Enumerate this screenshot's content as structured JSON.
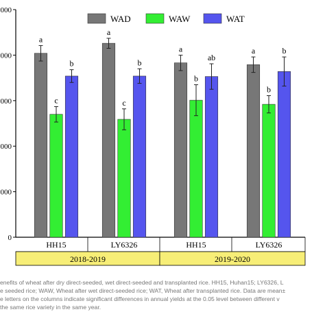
{
  "chart_data": {
    "type": "bar",
    "ylim": [
      0,
      5000
    ],
    "yticks": [
      0,
      1000,
      2000,
      3000,
      4000,
      5000
    ],
    "ytick_labels": [
      "0",
      "000",
      "000",
      "000",
      "000",
      "000"
    ],
    "categories": [
      "HH15",
      "LY6326",
      "HH15",
      "LY6326"
    ],
    "groups": [
      {
        "label": "2018-2019",
        "categories": [
          0,
          1
        ]
      },
      {
        "label": "2019-2020",
        "categories": [
          2,
          3
        ]
      }
    ],
    "series": [
      {
        "name": "WAD",
        "color": "#777777",
        "values": [
          4040,
          4260,
          3830,
          3790
        ],
        "errors": [
          170,
          110,
          170,
          170
        ],
        "letters": [
          "a",
          "a",
          "a",
          "a"
        ]
      },
      {
        "name": "WAW",
        "color": "#33ee33",
        "values": [
          2700,
          2590,
          3010,
          2920
        ],
        "errors": [
          170,
          230,
          340,
          190
        ],
        "letters": [
          "c",
          "c",
          "b",
          "b"
        ]
      },
      {
        "name": "WAT",
        "color": "#5555ee",
        "values": [
          3540,
          3540,
          3530,
          3640
        ],
        "errors": [
          140,
          160,
          280,
          320
        ],
        "letters": [
          "b",
          "b",
          "ab",
          "b"
        ]
      }
    ],
    "legend_position": "top",
    "grid": false,
    "group_band_color": "#f7ee77"
  },
  "caption": {
    "line1": "enefits of wheat after dry direct-seeded, wet direct-seeded and transplanted rice. HH15, Huhan15; LY6326, L",
    "line2": "e seeded rice; WAW, Wheat after wet direct-seeded rice; WAT, Wheat after transplanted rice. Data are mean±",
    "line3": "e letters on the columns indicate significant differences in annual yields at the 0.05 level between different v",
    "line4": "the same rice variety in the same year."
  }
}
